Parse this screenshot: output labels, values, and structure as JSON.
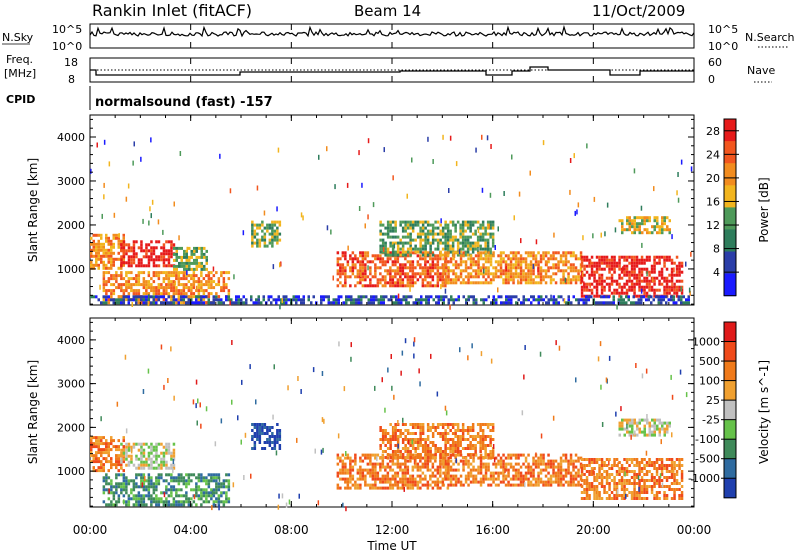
{
  "header": {
    "station": "Rankin Inlet (fitACF)",
    "beam": "Beam 14",
    "date": "11/Oct/2009"
  },
  "top_panels": {
    "nsky_label": "N.Sky",
    "nsky_ticks": [
      "10^5",
      "10^0"
    ],
    "nsearch_label": "N.Search",
    "nsearch_ticks": [
      "10^5",
      "10^0"
    ],
    "freq_label": "Freq.",
    "freq_unit": "[MHz]",
    "freq_ticks": [
      "18",
      "8"
    ],
    "nave_label": "Nave",
    "nave_ticks": [
      "60",
      "0"
    ],
    "cpid_label": "CPID",
    "cpid_text": "normalsound (fast) -157"
  },
  "colors": {
    "power": [
      "#1a1aff",
      "#2b3ea8",
      "#2e7d5c",
      "#4e9a5a",
      "#f2b51e",
      "#f28c1e",
      "#f2561e",
      "#e61a1a"
    ],
    "velocity": [
      "#1f3fae",
      "#2f6ba0",
      "#3f8a5a",
      "#66c24a",
      "#c0c0c0",
      "#f0a030",
      "#f07a1a",
      "#f04a1a",
      "#e01a1a"
    ]
  },
  "chart_data": [
    {
      "type": "heatmap",
      "name": "power",
      "ylabel": "Slant Range [km]",
      "xlabel": "Time UT",
      "x_ticks": [
        "00:00",
        "04:00",
        "08:00",
        "12:00",
        "16:00",
        "20:00",
        "00:00"
      ],
      "xlim": [
        0,
        24
      ],
      "y_ticks": [
        1000,
        2000,
        3000,
        4000
      ],
      "ylim": [
        180,
        4500
      ],
      "colorbar_label": "Power [dB]",
      "colorbar_ticks": [
        4,
        8,
        12,
        16,
        20,
        24,
        28
      ],
      "colorbar_range": [
        0,
        30
      ],
      "regions": [
        {
          "t0": 0.0,
          "t1": 1.3,
          "r0": 1000,
          "r1": 1800,
          "level": 5
        },
        {
          "t0": 1.2,
          "t1": 3.3,
          "r0": 1050,
          "r1": 1650,
          "level": 7
        },
        {
          "t0": 0.5,
          "t1": 5.5,
          "r0": 250,
          "r1": 950,
          "level": 5
        },
        {
          "t0": 3.3,
          "t1": 4.6,
          "r0": 1000,
          "r1": 1500,
          "level": 3
        },
        {
          "t0": 6.4,
          "t1": 7.5,
          "r0": 1500,
          "r1": 2100,
          "level": 3
        },
        {
          "t0": 9.8,
          "t1": 14.2,
          "r0": 600,
          "r1": 1400,
          "level": 6
        },
        {
          "t0": 11.5,
          "t1": 16.0,
          "r0": 1300,
          "r1": 2100,
          "level": 3
        },
        {
          "t0": 14.0,
          "t1": 19.5,
          "r0": 700,
          "r1": 1400,
          "level": 5
        },
        {
          "t0": 19.5,
          "t1": 23.5,
          "r0": 400,
          "r1": 1300,
          "level": 7
        },
        {
          "t0": 21.0,
          "t1": 23.0,
          "r0": 1800,
          "r1": 2200,
          "level": 4
        },
        {
          "t0": 0.0,
          "t1": 23.8,
          "r0": 200,
          "r1": 400,
          "level": 1
        }
      ]
    },
    {
      "type": "heatmap",
      "name": "velocity",
      "ylabel": "Slant Range [km]",
      "xlabel": "Time UT",
      "x_ticks": [
        "00:00",
        "04:00",
        "08:00",
        "12:00",
        "16:00",
        "20:00",
        "00:00"
      ],
      "xlim": [
        0,
        24
      ],
      "y_ticks": [
        1000,
        2000,
        3000,
        4000
      ],
      "ylim": [
        180,
        4500
      ],
      "colorbar_label": "Velocity [m s^-1]",
      "colorbar_ticks": [
        "1000",
        "500",
        "100",
        "25",
        "-25",
        "-100",
        "-500",
        "-1000"
      ],
      "regions": [
        {
          "t0": 0.0,
          "t1": 1.3,
          "r0": 1000,
          "r1": 1800,
          "level": 6
        },
        {
          "t0": 1.2,
          "t1": 3.3,
          "r0": 1050,
          "r1": 1650,
          "level": 4
        },
        {
          "t0": 0.5,
          "t1": 5.5,
          "r0": 250,
          "r1": 950,
          "level": 2
        },
        {
          "t0": 6.4,
          "t1": 7.5,
          "r0": 1500,
          "r1": 2100,
          "level": 0
        },
        {
          "t0": 9.8,
          "t1": 14.2,
          "r0": 600,
          "r1": 1400,
          "level": 6
        },
        {
          "t0": 11.5,
          "t1": 16.0,
          "r0": 1300,
          "r1": 2100,
          "level": 6
        },
        {
          "t0": 14.0,
          "t1": 19.5,
          "r0": 700,
          "r1": 1400,
          "level": 6
        },
        {
          "t0": 19.5,
          "t1": 23.5,
          "r0": 400,
          "r1": 1300,
          "level": 6
        },
        {
          "t0": 21.0,
          "t1": 23.0,
          "r0": 1800,
          "r1": 2200,
          "level": 4
        }
      ]
    }
  ]
}
